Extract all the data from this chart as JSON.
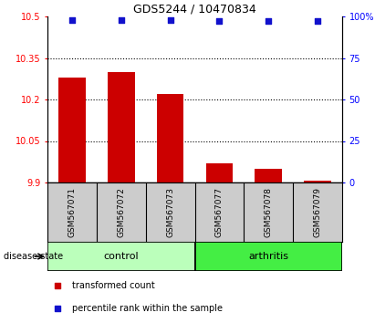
{
  "title": "GDS5244 / 10470834",
  "samples": [
    "GSM567071",
    "GSM567072",
    "GSM567073",
    "GSM567077",
    "GSM567078",
    "GSM567079"
  ],
  "bar_values": [
    10.28,
    10.3,
    10.22,
    9.97,
    9.95,
    9.905
  ],
  "percentile_values": [
    98,
    98,
    98,
    97,
    97,
    97
  ],
  "ylim_left": [
    9.9,
    10.5
  ],
  "ylim_right": [
    0,
    100
  ],
  "yticks_left": [
    9.9,
    10.05,
    10.2,
    10.35,
    10.5
  ],
  "ytick_labels_left": [
    "9.9",
    "10.05",
    "10.2",
    "10.35",
    "10.5"
  ],
  "yticks_right": [
    0,
    25,
    50,
    75,
    100
  ],
  "ytick_labels_right": [
    "0",
    "25",
    "50",
    "75",
    "100%"
  ],
  "hlines": [
    10.05,
    10.2,
    10.35
  ],
  "bar_color": "#cc0000",
  "dot_color": "#1111cc",
  "groups": [
    {
      "label": "control",
      "indices": [
        0,
        1,
        2
      ],
      "color": "#bbffbb"
    },
    {
      "label": "arthritis",
      "indices": [
        3,
        4,
        5
      ],
      "color": "#44ee44"
    }
  ],
  "disease_state_label": "disease state",
  "legend_bar_label": "transformed count",
  "legend_dot_label": "percentile rank within the sample",
  "bar_width": 0.55,
  "base_value": 9.9,
  "gray_color": "#cccccc",
  "sample_label_fontsize": 6.5,
  "group_label_fontsize": 8,
  "title_fontsize": 9,
  "legend_fontsize": 7
}
